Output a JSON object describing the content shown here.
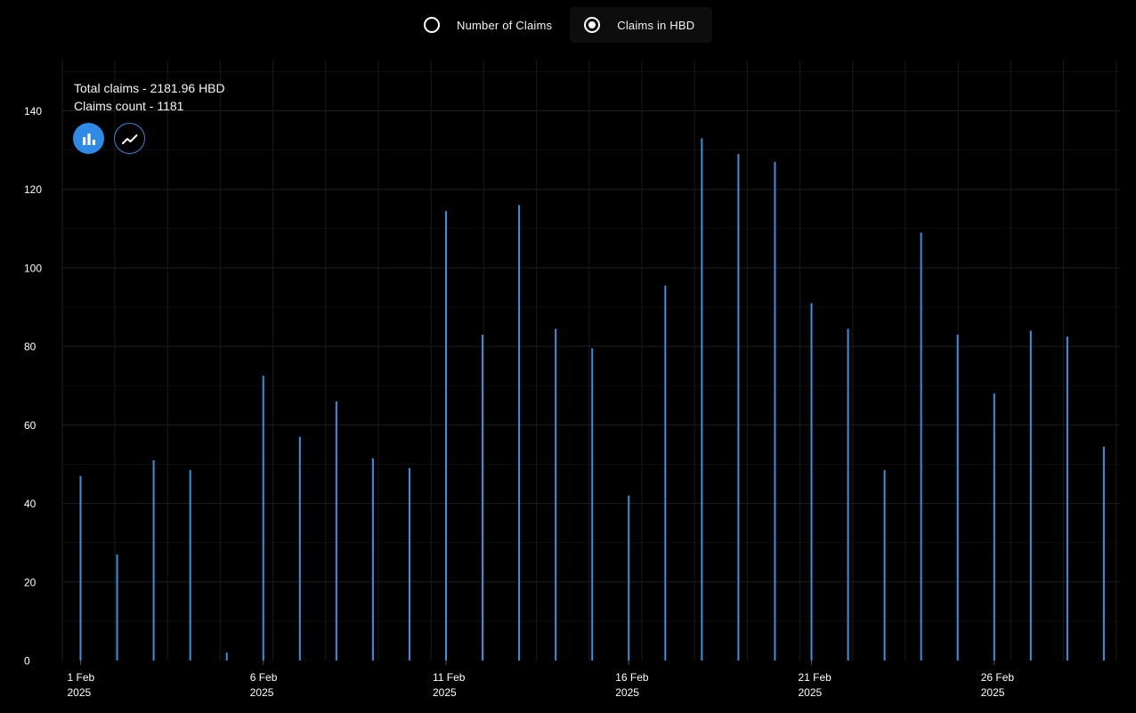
{
  "metric_toggle": {
    "options": [
      {
        "label": "Number of Claims",
        "selected": false
      },
      {
        "label": "Claims in HBD",
        "selected": true
      }
    ]
  },
  "summary": {
    "total_claims": "Total claims - 2181.96 HBD",
    "claims_count": "Claims count - 1181"
  },
  "chart_type_buttons": {
    "active": "bar",
    "bar_icon": "bar-chart-icon",
    "line_icon": "line-chart-icon"
  },
  "colors": {
    "background": "#000000",
    "bar": "#3d8fe0",
    "grid": "#1f1f1f",
    "accent": "#2f8ae6"
  },
  "chart_data": {
    "type": "bar",
    "title": "",
    "xlabel": "",
    "ylabel": "",
    "ylim": [
      0,
      150
    ],
    "yticks": [
      0,
      20,
      40,
      60,
      80,
      100,
      120,
      140
    ],
    "grid": true,
    "x_tick_labels": [
      {
        "day": "1 Feb",
        "year": "2025",
        "index": 0
      },
      {
        "day": "6 Feb",
        "year": "2025",
        "index": 5
      },
      {
        "day": "11 Feb",
        "year": "2025",
        "index": 10
      },
      {
        "day": "16 Feb",
        "year": "2025",
        "index": 15
      },
      {
        "day": "21 Feb",
        "year": "2025",
        "index": 20
      },
      {
        "day": "26 Feb",
        "year": "2025",
        "index": 25
      }
    ],
    "categories": [
      "2025-02-01",
      "2025-02-02",
      "2025-02-03",
      "2025-02-04",
      "2025-02-05",
      "2025-02-06",
      "2025-02-07",
      "2025-02-08",
      "2025-02-09",
      "2025-02-10",
      "2025-02-11",
      "2025-02-12",
      "2025-02-13",
      "2025-02-14",
      "2025-02-15",
      "2025-02-16",
      "2025-02-17",
      "2025-02-18",
      "2025-02-19",
      "2025-02-20",
      "2025-02-21",
      "2025-02-22",
      "2025-02-23",
      "2025-02-24",
      "2025-02-25",
      "2025-02-26",
      "2025-02-27",
      "2025-02-28",
      "2025-03-01"
    ],
    "series": [
      {
        "values": [
          47,
          27,
          51,
          48.5,
          2,
          72.5,
          57,
          66,
          51.5,
          49,
          114.5,
          83,
          116,
          84.5,
          79.5,
          42,
          95.5,
          133,
          129,
          127,
          91,
          84.5,
          48.5,
          109,
          83,
          68,
          84,
          82.5,
          54.5
        ]
      }
    ]
  }
}
